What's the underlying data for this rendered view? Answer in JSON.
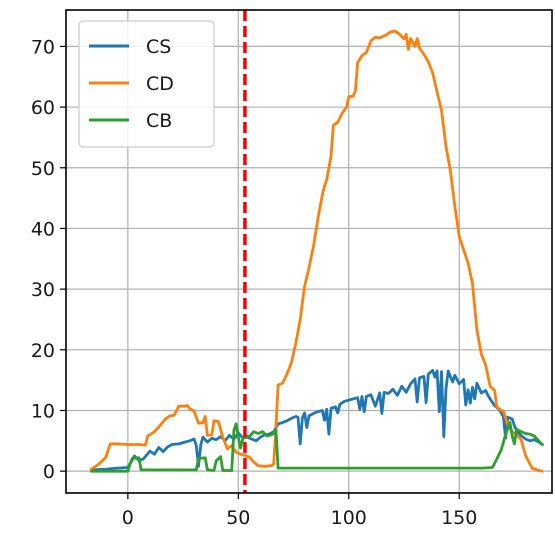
{
  "chart_data": {
    "type": "line",
    "title": "",
    "xlabel": "",
    "ylabel": "",
    "xlim": [
      -28,
      192
    ],
    "ylim": [
      -3.6,
      76
    ],
    "xticks": [
      0,
      50,
      100,
      150
    ],
    "yticks": [
      0,
      10,
      20,
      30,
      40,
      50,
      60,
      70
    ],
    "grid": true,
    "legend": {
      "position": "top-left",
      "entries": [
        "CS",
        "CD",
        "CB"
      ]
    },
    "vline": {
      "x": 53,
      "color": "#ff0000",
      "style": "dashed"
    },
    "series": [
      {
        "name": "CS",
        "color": "#1f77b4",
        "points": [
          [
            -17,
            0.2
          ],
          [
            -10,
            0.3
          ],
          [
            -5,
            0.5
          ],
          [
            0,
            0.6
          ],
          [
            3,
            2.5
          ],
          [
            5,
            1.8
          ],
          [
            7,
            2.0
          ],
          [
            10,
            3.3
          ],
          [
            12,
            2.8
          ],
          [
            14,
            3.9
          ],
          [
            16,
            3.2
          ],
          [
            18,
            4.0
          ],
          [
            20,
            4.4
          ],
          [
            23,
            4.5
          ],
          [
            26,
            4.8
          ],
          [
            28,
            5.0
          ],
          [
            30,
            5.3
          ],
          [
            31,
            4.2
          ],
          [
            32,
            0.8
          ],
          [
            33,
            4.4
          ],
          [
            34,
            5.6
          ],
          [
            36,
            4.8
          ],
          [
            38,
            5.4
          ],
          [
            40,
            5.2
          ],
          [
            42,
            5.7
          ],
          [
            44,
            5.0
          ],
          [
            46,
            5.9
          ],
          [
            48,
            5.3
          ],
          [
            50,
            6.3
          ],
          [
            52,
            5.5
          ],
          [
            54,
            5.6
          ],
          [
            56,
            5.3
          ],
          [
            58,
            5.0
          ],
          [
            60,
            5.6
          ],
          [
            62,
            6.0
          ],
          [
            64,
            6.1
          ],
          [
            66,
            6.5
          ],
          [
            68,
            7.8
          ],
          [
            70,
            8.0
          ],
          [
            72,
            8.3
          ],
          [
            74,
            8.7
          ],
          [
            76,
            9.0
          ],
          [
            77,
            8.9
          ],
          [
            78,
            4.5
          ],
          [
            79,
            8.8
          ],
          [
            80,
            9.6
          ],
          [
            81,
            7.2
          ],
          [
            82,
            9.1
          ],
          [
            84,
            9.5
          ],
          [
            86,
            9.8
          ],
          [
            88,
            10.0
          ],
          [
            89,
            8.4
          ],
          [
            90,
            10.2
          ],
          [
            91,
            6.1
          ],
          [
            92,
            10.4
          ],
          [
            94,
            10.6
          ],
          [
            95,
            9.6
          ],
          [
            96,
            11.0
          ],
          [
            98,
            11.5
          ],
          [
            100,
            11.7
          ],
          [
            102,
            11.9
          ],
          [
            104,
            12.1
          ],
          [
            105,
            10.2
          ],
          [
            106,
            12.3
          ],
          [
            107,
            9.8
          ],
          [
            108,
            12.3
          ],
          [
            110,
            12.6
          ],
          [
            112,
            10.7
          ],
          [
            114,
            12.9
          ],
          [
            115,
            9.5
          ],
          [
            116,
            13.0
          ],
          [
            118,
            12.8
          ],
          [
            120,
            13.5
          ],
          [
            122,
            12.5
          ],
          [
            124,
            14.0
          ],
          [
            126,
            13.0
          ],
          [
            128,
            14.4
          ],
          [
            130,
            15.2
          ],
          [
            131,
            11.4
          ],
          [
            132,
            15.4
          ],
          [
            134,
            15.6
          ],
          [
            135,
            11.3
          ],
          [
            136,
            16.0
          ],
          [
            138,
            16.6
          ],
          [
            139,
            15.5
          ],
          [
            140,
            16.5
          ],
          [
            141,
            9.8
          ],
          [
            142,
            16.4
          ],
          [
            143,
            5.7
          ],
          [
            144,
            13.6
          ],
          [
            145,
            16.5
          ],
          [
            147,
            14.7
          ],
          [
            148,
            15.8
          ],
          [
            150,
            14.4
          ],
          [
            152,
            15.1
          ],
          [
            153,
            10.9
          ],
          [
            154,
            13.4
          ],
          [
            155,
            11.2
          ],
          [
            156,
            13.8
          ],
          [
            157,
            11.9
          ],
          [
            158,
            14.5
          ],
          [
            160,
            12.9
          ],
          [
            162,
            13.3
          ],
          [
            163,
            12.5
          ],
          [
            164,
            11.9
          ],
          [
            166,
            10.8
          ],
          [
            168,
            10.2
          ],
          [
            170,
            9.0
          ],
          [
            171,
            5.5
          ],
          [
            172,
            8.9
          ],
          [
            174,
            8.6
          ],
          [
            175,
            7.5
          ],
          [
            176,
            6.6
          ],
          [
            178,
            5.9
          ],
          [
            180,
            5.3
          ],
          [
            182,
            5.0
          ],
          [
            184,
            5.2
          ],
          [
            186,
            4.8
          ],
          [
            188,
            4.3
          ]
        ]
      },
      {
        "name": "CD",
        "color": "#ff7f0e",
        "points": [
          [
            -17,
            0.2
          ],
          [
            -13,
            1.2
          ],
          [
            -10,
            2.3
          ],
          [
            -8,
            4.5
          ],
          [
            -5,
            4.5
          ],
          [
            0,
            4.4
          ],
          [
            5,
            4.4
          ],
          [
            8,
            4.3
          ],
          [
            9,
            5.8
          ],
          [
            12,
            6.5
          ],
          [
            14,
            7.3
          ],
          [
            17,
            8.6
          ],
          [
            19,
            9.1
          ],
          [
            21,
            9.2
          ],
          [
            23,
            10.7
          ],
          [
            25,
            10.7
          ],
          [
            27,
            10.8
          ],
          [
            28,
            10.3
          ],
          [
            30,
            9.9
          ],
          [
            32,
            7.9
          ],
          [
            34,
            8.0
          ],
          [
            35,
            9.0
          ],
          [
            36,
            5.9
          ],
          [
            38,
            6.0
          ],
          [
            39,
            8.3
          ],
          [
            41,
            8.2
          ],
          [
            43,
            5.6
          ],
          [
            45,
            3.7
          ],
          [
            47,
            4.2
          ],
          [
            49,
            3.1
          ],
          [
            51,
            2.8
          ],
          [
            53,
            2.6
          ],
          [
            55,
            2.3
          ],
          [
            57,
            1.5
          ],
          [
            59,
            0.9
          ],
          [
            62,
            0.8
          ],
          [
            65,
            0.9
          ],
          [
            66,
            1.2
          ],
          [
            67,
            7.2
          ],
          [
            68,
            14.2
          ],
          [
            70,
            14.5
          ],
          [
            72,
            16.0
          ],
          [
            74,
            17.8
          ],
          [
            76,
            21.0
          ],
          [
            78,
            25.0
          ],
          [
            80,
            30.5
          ],
          [
            82,
            33.5
          ],
          [
            84,
            37.0
          ],
          [
            86,
            41.5
          ],
          [
            88,
            45.5
          ],
          [
            89,
            47.0
          ],
          [
            90,
            48.0
          ],
          [
            92,
            52.0
          ],
          [
            93,
            57.0
          ],
          [
            95,
            57.5
          ],
          [
            97,
            59.0
          ],
          [
            99,
            60.0
          ],
          [
            100,
            61.7
          ],
          [
            102,
            61.8
          ],
          [
            103,
            62.7
          ],
          [
            104,
            67.3
          ],
          [
            106,
            68.5
          ],
          [
            108,
            69.0
          ],
          [
            110,
            70.9
          ],
          [
            112,
            71.5
          ],
          [
            114,
            71.4
          ],
          [
            117,
            71.9
          ],
          [
            119,
            72.4
          ],
          [
            121,
            72.5
          ],
          [
            123,
            72.0
          ],
          [
            125,
            71.2
          ],
          [
            126,
            72.0
          ],
          [
            127,
            69.5
          ],
          [
            128,
            71.3
          ],
          [
            130,
            70.0
          ],
          [
            131,
            71.3
          ],
          [
            132,
            69.7
          ],
          [
            134,
            68.7
          ],
          [
            136,
            67.5
          ],
          [
            138,
            65.6
          ],
          [
            140,
            62.5
          ],
          [
            142,
            59.5
          ],
          [
            144,
            53.5
          ],
          [
            146,
            49.5
          ],
          [
            148,
            43.7
          ],
          [
            150,
            38.7
          ],
          [
            152,
            36.5
          ],
          [
            154,
            34.3
          ],
          [
            156,
            30.9
          ],
          [
            158,
            23.3
          ],
          [
            160,
            19.3
          ],
          [
            162,
            17.5
          ],
          [
            164,
            14.0
          ],
          [
            166,
            13.3
          ],
          [
            167,
            10.6
          ],
          [
            169,
            10.0
          ],
          [
            170,
            9.9
          ],
          [
            172,
            7.6
          ],
          [
            174,
            6.5
          ],
          [
            176,
            6.0
          ],
          [
            178,
            5.2
          ],
          [
            180,
            2.6
          ],
          [
            183,
            0.5
          ],
          [
            186,
            0.1
          ],
          [
            188,
            0.0
          ]
        ]
      },
      {
        "name": "CB",
        "color": "#2ca02c",
        "points": [
          [
            -17,
            0.0
          ],
          [
            0,
            0.0
          ],
          [
            1,
            1.2
          ],
          [
            2,
            2.1
          ],
          [
            5,
            2.2
          ],
          [
            6,
            0.2
          ],
          [
            31,
            0.2
          ],
          [
            32,
            2.1
          ],
          [
            35,
            2.2
          ],
          [
            36,
            0.2
          ],
          [
            39,
            0.1
          ],
          [
            40,
            1.7
          ],
          [
            42,
            2.4
          ],
          [
            43,
            0.1
          ],
          [
            47,
            0.1
          ],
          [
            48,
            6.7
          ],
          [
            49,
            7.8
          ],
          [
            50,
            5.6
          ],
          [
            51,
            3.8
          ],
          [
            52,
            5.3
          ],
          [
            53,
            5.8
          ],
          [
            55,
            5.7
          ],
          [
            57,
            6.5
          ],
          [
            59,
            6.2
          ],
          [
            61,
            6.5
          ],
          [
            63,
            5.8
          ],
          [
            65,
            6.0
          ],
          [
            66,
            6.2
          ],
          [
            67,
            6.9
          ],
          [
            68,
            0.5
          ],
          [
            100,
            0.5
          ],
          [
            130,
            0.5
          ],
          [
            160,
            0.5
          ],
          [
            165,
            0.6
          ],
          [
            167,
            2.0
          ],
          [
            169,
            3.5
          ],
          [
            171,
            6.0
          ],
          [
            173,
            8.0
          ],
          [
            174,
            5.8
          ],
          [
            175,
            4.5
          ],
          [
            176,
            6.9
          ],
          [
            178,
            6.5
          ],
          [
            180,
            6.2
          ],
          [
            182,
            6.1
          ],
          [
            184,
            5.8
          ],
          [
            186,
            5.0
          ],
          [
            188,
            4.2
          ]
        ]
      }
    ]
  }
}
